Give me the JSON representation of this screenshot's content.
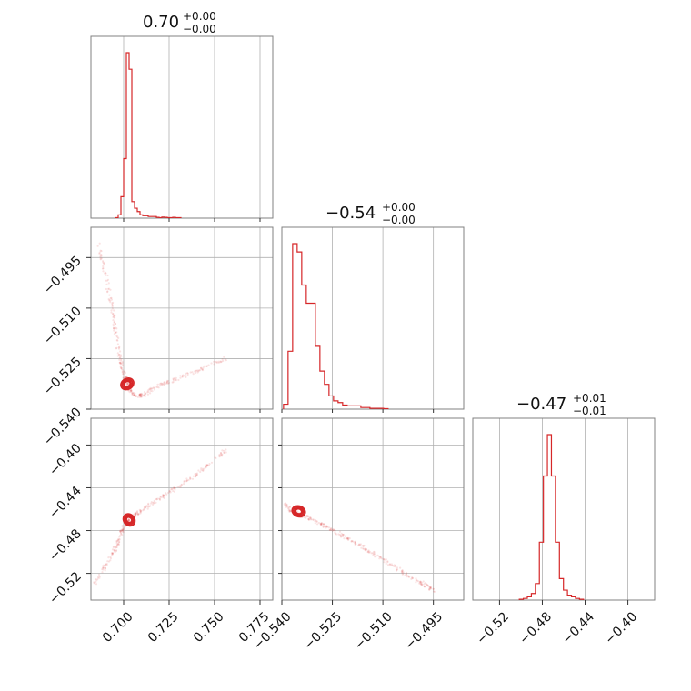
{
  "chart_data": {
    "type": "corner",
    "color": "#d62728",
    "grid": true,
    "panel_titles": [
      {
        "value": "0.70",
        "plus": "+0.00",
        "minus": "−0.00"
      },
      {
        "value": "−0.54",
        "plus": "+0.00",
        "minus": "−0.00"
      },
      {
        "value": "−0.47",
        "plus": "+0.01",
        "minus": "−0.01"
      }
    ],
    "params": [
      {
        "range": [
          0.682,
          0.782
        ],
        "ticks": [
          0.7,
          0.725,
          0.75,
          0.775
        ],
        "tick_labels": [
          "0.700",
          "0.725",
          "0.750",
          "0.775"
        ]
      },
      {
        "range": [
          -0.54,
          -0.486
        ],
        "ticks": [
          -0.54,
          -0.525,
          -0.51,
          -0.495
        ],
        "tick_labels": [
          "−0.540",
          "−0.525",
          "−0.510",
          "−0.495"
        ]
      },
      {
        "range": [
          -0.545,
          -0.375
        ],
        "ticks": [
          -0.52,
          -0.48,
          -0.44,
          -0.4
        ],
        "tick_labels": [
          "−0.52",
          "−0.48",
          "−0.44",
          "−0.40"
        ]
      }
    ],
    "histograms": [
      {
        "bin_start": 0.6955,
        "bin_width": 0.0015,
        "counts": [
          0.3,
          2,
          13,
          36,
          100,
          90,
          10,
          6,
          4,
          2,
          1.5,
          1.5,
          1,
          1,
          1,
          0.5,
          0.3,
          0.6,
          0.5,
          0.3,
          0.3,
          0.5,
          0.3,
          0.3
        ]
      },
      {
        "bin_start": -0.5395,
        "bin_width": 0.00135,
        "counts": [
          3,
          35,
          100,
          95,
          75,
          64,
          64,
          38,
          23,
          15,
          8,
          5,
          4,
          2.5,
          2,
          2,
          2,
          1,
          1,
          0.5,
          0.5,
          0.5,
          0.3
        ]
      },
      {
        "bin_start": -0.5015,
        "bin_width": 0.00375,
        "counts": [
          0.5,
          1,
          2,
          4,
          10,
          35,
          75,
          100,
          75,
          35,
          13,
          6,
          3,
          2,
          1,
          0.5
        ]
      }
    ],
    "scatter_tracks": [
      {
        "pair": [
          0,
          1
        ],
        "points": [
          [
            0.686,
            -0.491
          ],
          [
            0.69,
            -0.5
          ],
          [
            0.693,
            -0.508
          ],
          [
            0.695,
            -0.515
          ],
          [
            0.697,
            -0.522
          ],
          [
            0.699,
            -0.527
          ],
          [
            0.701,
            -0.531
          ],
          [
            0.703,
            -0.534
          ],
          [
            0.706,
            -0.536
          ],
          [
            0.71,
            -0.536
          ],
          [
            0.716,
            -0.534
          ],
          [
            0.724,
            -0.532
          ],
          [
            0.734,
            -0.53
          ],
          [
            0.744,
            -0.528
          ],
          [
            0.756,
            -0.525
          ]
        ]
      },
      {
        "pair": [
          0,
          2
        ],
        "points": [
          [
            0.684,
            -0.53
          ],
          [
            0.69,
            -0.513
          ],
          [
            0.695,
            -0.498
          ],
          [
            0.698,
            -0.486
          ],
          [
            0.7,
            -0.476
          ],
          [
            0.703,
            -0.47
          ],
          [
            0.707,
            -0.464
          ],
          [
            0.713,
            -0.458
          ],
          [
            0.72,
            -0.45
          ],
          [
            0.728,
            -0.441
          ],
          [
            0.738,
            -0.43
          ],
          [
            0.746,
            -0.419
          ],
          [
            0.756,
            -0.405
          ]
        ]
      },
      {
        "pair": [
          1,
          2
        ],
        "points": [
          [
            -0.5395,
            -0.454
          ],
          [
            -0.537,
            -0.462
          ],
          [
            -0.534,
            -0.466
          ],
          [
            -0.531,
            -0.47
          ],
          [
            -0.527,
            -0.476
          ],
          [
            -0.523,
            -0.483
          ],
          [
            -0.519,
            -0.49
          ],
          [
            -0.515,
            -0.497
          ],
          [
            -0.511,
            -0.505
          ],
          [
            -0.506,
            -0.515
          ],
          [
            -0.502,
            -0.523
          ],
          [
            -0.498,
            -0.53
          ],
          [
            -0.494,
            -0.538
          ]
        ]
      }
    ],
    "contour_centers": [
      {
        "pair": [
          0,
          1
        ],
        "center": [
          0.702,
          -0.5325
        ],
        "spread": [
          0.003,
          0.002
        ]
      },
      {
        "pair": [
          0,
          2
        ],
        "center": [
          0.703,
          -0.47
        ],
        "spread": [
          0.003,
          0.006
        ]
      },
      {
        "pair": [
          1,
          2
        ],
        "center": [
          -0.535,
          -0.462
        ],
        "spread": [
          0.002,
          0.005
        ]
      }
    ]
  }
}
